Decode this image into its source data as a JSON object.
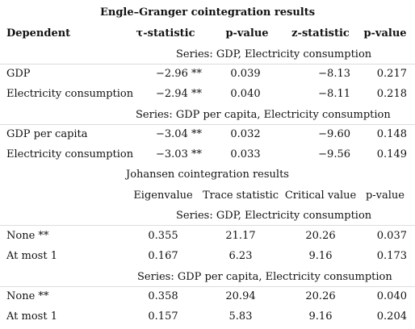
{
  "engle": {
    "title": "Engle–Granger cointegration results",
    "headers": [
      "Dependent",
      "τ-statistic",
      "p-value",
      "z-statistic",
      "p-value"
    ],
    "series1": "Series: GDP, Electricity consumption",
    "rows1": [
      {
        "dep": "GDP",
        "tau": "−2.96 **",
        "p1": "0.039",
        "z": "−8.13",
        "p2": "0.217"
      },
      {
        "dep": "Electricity consumption",
        "tau": "−2.94 **",
        "p1": "0.040",
        "z": "−8.11",
        "p2": "0.218"
      }
    ],
    "series2": "Series: GDP per capita, Electricity consumption",
    "rows2": [
      {
        "dep": "GDP per capita",
        "tau": "−3.04 **",
        "p1": "0.032",
        "z": "−9.60",
        "p2": "0.148"
      },
      {
        "dep": "Electricity consumption",
        "tau": "−3.03 **",
        "p1": "0.033",
        "z": "−9.56",
        "p2": "0.149"
      }
    ]
  },
  "johansen": {
    "title": "Johansen cointegration results",
    "headers": [
      "Eigenvalue",
      "Trace statistic",
      "Critical value",
      "p-value"
    ],
    "series1": "Series: GDP, Electricity consumption",
    "rows1": [
      {
        "h": "None **",
        "eig": "0.355",
        "trace": "21.17",
        "crit": "20.26",
        "p": "0.037"
      },
      {
        "h": "At most 1",
        "eig": "0.167",
        "trace": "6.23",
        "crit": "9.16",
        "p": "0.173"
      }
    ],
    "series2": "Series: GDP per capita, Electricity consumption",
    "rows2": [
      {
        "h": "None **",
        "eig": "0.358",
        "trace": "20.94",
        "crit": "20.26",
        "p": "0.040"
      },
      {
        "h": "At most 1",
        "eig": "0.157",
        "trace": "5.83",
        "crit": "9.16",
        "p": "0.204"
      }
    ]
  }
}
